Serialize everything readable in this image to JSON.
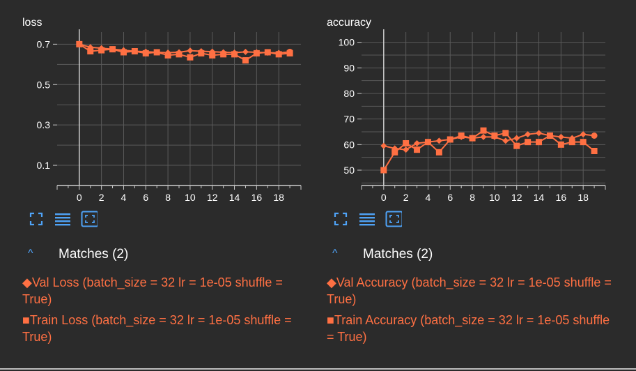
{
  "colors": {
    "series": "#ff7043",
    "accent": "#4fa3f7",
    "grid": "#5a5a5a",
    "axis": "#cccccc"
  },
  "toolbar": {
    "fullscreen_icon": "fullscreen-icon",
    "legend_icon": "list-icon",
    "fit_icon": "fit-domain-icon"
  },
  "chart_data": [
    {
      "type": "line",
      "title": "loss",
      "xlabel": "",
      "ylabel": "",
      "x": [
        0,
        1,
        2,
        3,
        4,
        5,
        6,
        7,
        8,
        9,
        10,
        11,
        12,
        13,
        14,
        15,
        16,
        17,
        18,
        19
      ],
      "xlim": [
        -2,
        20
      ],
      "ylim": [
        0,
        0.76
      ],
      "xticks": [
        0,
        2,
        4,
        6,
        8,
        10,
        12,
        14,
        16,
        18
      ],
      "yticks": [
        0.1,
        0.3,
        0.5,
        0.7
      ],
      "ytick_labels": [
        "0.1",
        "0.3",
        "0.5",
        "0.7"
      ],
      "grid": true,
      "series": [
        {
          "name": "Val Loss (batch_size = 32 lr = 1e-05 shuffle = True)",
          "marker": "diamond",
          "values": [
            0.7,
            0.685,
            0.68,
            0.675,
            0.67,
            0.665,
            0.663,
            0.66,
            0.658,
            0.66,
            0.668,
            0.665,
            0.663,
            0.66,
            0.658,
            0.662,
            0.66,
            0.658,
            0.657,
            0.662
          ]
        },
        {
          "name": "Train Loss (batch_size = 32 lr = 1e-05 shuffle = True)",
          "marker": "square",
          "values": [
            0.7,
            0.665,
            0.67,
            0.675,
            0.66,
            0.665,
            0.655,
            0.66,
            0.645,
            0.65,
            0.635,
            0.655,
            0.645,
            0.65,
            0.65,
            0.62,
            0.655,
            0.66,
            0.65,
            0.655
          ]
        }
      ]
    },
    {
      "type": "line",
      "title": "accuracy",
      "xlabel": "",
      "ylabel": "",
      "x": [
        0,
        1,
        2,
        3,
        4,
        5,
        6,
        7,
        8,
        9,
        10,
        11,
        12,
        13,
        14,
        15,
        16,
        17,
        18,
        19
      ],
      "xlim": [
        -2,
        20
      ],
      "ylim": [
        44,
        104
      ],
      "xticks": [
        0,
        2,
        4,
        6,
        8,
        10,
        12,
        14,
        16,
        18
      ],
      "yticks": [
        50,
        60,
        70,
        80,
        90,
        100
      ],
      "ytick_labels": [
        "50",
        "60",
        "70",
        "80",
        "90",
        "100"
      ],
      "grid": true,
      "series": [
        {
          "name": "Val Accuracy (batch_size = 32 lr = 1e-05 shuffle = True)",
          "marker": "diamond",
          "values": [
            59.5,
            58.5,
            58,
            60.5,
            61,
            61.5,
            62,
            63,
            62.5,
            63,
            63,
            61.5,
            62.5,
            64,
            64.5,
            63.5,
            63,
            62.5,
            64,
            63.5
          ]
        },
        {
          "name": "Train Accuracy (batch_size = 32 lr = 1e-05 shuffle = True)",
          "marker": "square",
          "values": [
            50,
            57,
            60.5,
            58,
            61,
            57,
            62,
            63.5,
            62.5,
            65.5,
            63.5,
            64.5,
            59.5,
            61,
            61,
            63.5,
            60,
            61,
            61,
            57.5
          ]
        }
      ]
    }
  ],
  "left_panel": {
    "matches_label": "Matches (2)",
    "items": [
      {
        "glyph": "◆",
        "text": "Val Loss (batch_size = 32 lr = 1e-05 shuffle = True)"
      },
      {
        "glyph": "■",
        "text": "Train Loss (batch_size = 32 lr = 1e-05 shuffle = True)"
      }
    ]
  },
  "right_panel": {
    "matches_label": "Matches (2)",
    "items": [
      {
        "glyph": "◆",
        "text": "Val Accuracy (batch_size = 32 lr = 1e-05 shuffle = True)"
      },
      {
        "glyph": "■",
        "text": "Train Accuracy (batch_size = 32 lr = 1e-05 shuffle = True)"
      }
    ]
  }
}
